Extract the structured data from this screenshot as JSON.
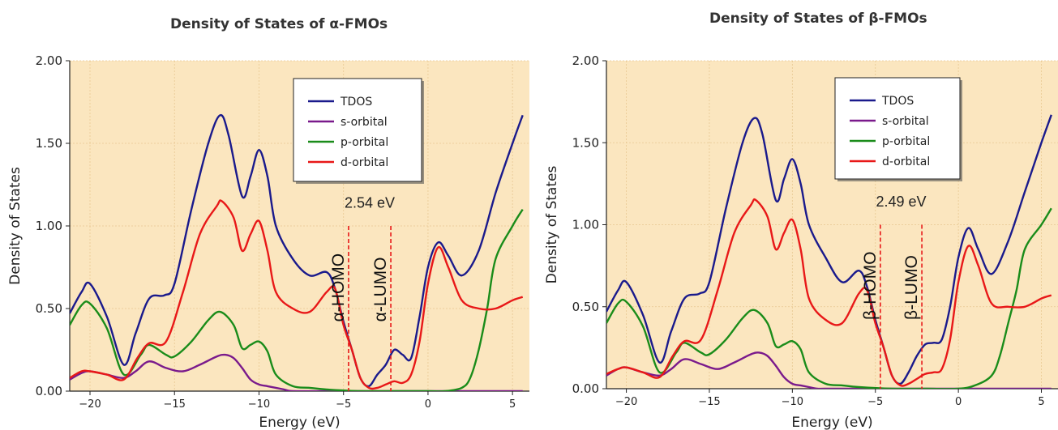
{
  "chart_data": [
    {
      "type": "line",
      "title": "Density of States of α-FMOs",
      "xlabel": "Energy (eV)",
      "ylabel": "Density of States",
      "xlim": [
        -21.2,
        6
      ],
      "ylim": [
        0,
        2.0
      ],
      "xticks": [
        -20,
        -15,
        -10,
        -5,
        0,
        5
      ],
      "xtick_labels": [
        "−20",
        "−15",
        "−10",
        "−5",
        "0",
        "5"
      ],
      "yticks": [
        0,
        0.5,
        1.0,
        1.5,
        2.0
      ],
      "ytick_labels": [
        "0.00",
        "0.50",
        "1.00",
        "1.50",
        "2.00"
      ],
      "grid": true,
      "legend": "top-right",
      "series": [
        {
          "name": "TDOS",
          "color": "#1a1a8c",
          "x": [
            -21.2,
            -20.5,
            -20,
            -19,
            -18,
            -17.3,
            -16.5,
            -15.6,
            -15,
            -14,
            -13,
            -12.3,
            -11.8,
            -11,
            -10.5,
            -10,
            -9.5,
            -9,
            -8,
            -7,
            -6,
            -5.5,
            -5,
            -4.5,
            -4,
            -3.5,
            -3,
            -2.5,
            -2,
            -1.5,
            -1,
            -0.5,
            0,
            0.6,
            1.2,
            2,
            3,
            4,
            5,
            5.6
          ],
          "y": [
            0.47,
            0.6,
            0.65,
            0.45,
            0.16,
            0.35,
            0.56,
            0.58,
            0.65,
            1.1,
            1.5,
            1.67,
            1.55,
            1.18,
            1.3,
            1.46,
            1.3,
            1.0,
            0.8,
            0.7,
            0.72,
            0.62,
            0.42,
            0.25,
            0.08,
            0.03,
            0.1,
            0.16,
            0.25,
            0.22,
            0.2,
            0.45,
            0.75,
            0.9,
            0.82,
            0.7,
            0.85,
            1.2,
            1.5,
            1.67
          ]
        },
        {
          "name": "s-orbital",
          "color": "#7a1a8c",
          "x": [
            -21.2,
            -20.5,
            -20,
            -19,
            -18,
            -17.3,
            -16.5,
            -15.5,
            -14.5,
            -13.5,
            -12.5,
            -12,
            -11.5,
            -11,
            -10.5,
            -10,
            -9.5,
            -9,
            -8.5,
            -8,
            -6,
            -4,
            -2,
            0,
            2,
            4,
            5.6
          ],
          "y": [
            0.07,
            0.11,
            0.12,
            0.1,
            0.08,
            0.12,
            0.18,
            0.14,
            0.12,
            0.16,
            0.21,
            0.22,
            0.2,
            0.14,
            0.07,
            0.04,
            0.03,
            0.02,
            0.01,
            0.0,
            0.0,
            0.0,
            0.0,
            0.0,
            0.0,
            0.0,
            0.0
          ]
        },
        {
          "name": "p-orbital",
          "color": "#1a8c1a",
          "x": [
            -21.2,
            -20.5,
            -20,
            -19,
            -18,
            -17,
            -16.5,
            -15.5,
            -15,
            -14,
            -13,
            -12.3,
            -11.5,
            -11,
            -10.5,
            -10,
            -9.5,
            -9,
            -8,
            -7,
            -6,
            -4,
            -2,
            0,
            1,
            2,
            2.5,
            3,
            3.5,
            4,
            5,
            5.6
          ],
          "y": [
            0.4,
            0.52,
            0.53,
            0.38,
            0.1,
            0.22,
            0.28,
            0.22,
            0.21,
            0.3,
            0.43,
            0.48,
            0.4,
            0.26,
            0.28,
            0.3,
            0.24,
            0.1,
            0.03,
            0.02,
            0.01,
            0.0,
            0.0,
            0.0,
            0.0,
            0.02,
            0.08,
            0.25,
            0.5,
            0.8,
            1.0,
            1.1
          ]
        },
        {
          "name": "d-orbital",
          "color": "#e81818",
          "x": [
            -21.2,
            -20.5,
            -20,
            -19,
            -18,
            -17.2,
            -16.5,
            -15.5,
            -14.5,
            -13.5,
            -12.5,
            -12.2,
            -11.5,
            -11,
            -10.5,
            -10,
            -9.5,
            -9,
            -8,
            -7,
            -6,
            -5.5,
            -5,
            -4.5,
            -4,
            -3.5,
            -3,
            -2.5,
            -2,
            -1.5,
            -1,
            -0.5,
            0,
            0.6,
            1.2,
            2,
            3,
            4,
            5,
            5.6
          ],
          "y": [
            0.08,
            0.12,
            0.12,
            0.1,
            0.07,
            0.2,
            0.29,
            0.3,
            0.6,
            0.95,
            1.12,
            1.15,
            1.05,
            0.85,
            0.95,
            1.03,
            0.85,
            0.6,
            0.5,
            0.48,
            0.6,
            0.62,
            0.4,
            0.25,
            0.08,
            0.02,
            0.02,
            0.04,
            0.06,
            0.05,
            0.1,
            0.3,
            0.65,
            0.87,
            0.75,
            0.55,
            0.5,
            0.5,
            0.55,
            0.57
          ]
        }
      ],
      "vlines": [
        {
          "x": -4.7,
          "color": "#e81818",
          "label": "α-HOMO"
        },
        {
          "x": -2.2,
          "color": "#e81818",
          "label": "α-LUMO"
        }
      ],
      "gap_label": "2.54 eV"
    },
    {
      "type": "line",
      "title": "Density of States of β-FMOs",
      "xlabel": "Energy (eV)",
      "ylabel": "Density of States",
      "xlim": [
        -21.2,
        6
      ],
      "ylim": [
        0,
        2.0
      ],
      "xticks": [
        -20,
        -15,
        -10,
        -5,
        0,
        5
      ],
      "xtick_labels": [
        "−20",
        "−15",
        "−10",
        "−5",
        "0",
        "5"
      ],
      "yticks": [
        0,
        0.5,
        1.0,
        1.5,
        2.0
      ],
      "ytick_labels": [
        "0.00",
        "0.50",
        "1.00",
        "1.50",
        "2.00"
      ],
      "grid": true,
      "legend": "top-right",
      "series": [
        {
          "name": "TDOS",
          "color": "#1a1a8c",
          "x": [
            -21.2,
            -20.5,
            -20,
            -19,
            -18,
            -17.3,
            -16.5,
            -15.6,
            -15,
            -14,
            -13,
            -12.3,
            -11.8,
            -11,
            -10.5,
            -10,
            -9.5,
            -9,
            -8,
            -7,
            -6,
            -5.5,
            -5,
            -4.5,
            -4,
            -3.5,
            -3,
            -2.5,
            -2,
            -1.5,
            -1,
            -0.5,
            0,
            0.6,
            1.2,
            2,
            3,
            4,
            5,
            5.6
          ],
          "y": [
            0.47,
            0.6,
            0.65,
            0.45,
            0.16,
            0.35,
            0.55,
            0.58,
            0.65,
            1.1,
            1.5,
            1.65,
            1.55,
            1.15,
            1.28,
            1.4,
            1.25,
            1.0,
            0.8,
            0.65,
            0.72,
            0.62,
            0.42,
            0.25,
            0.08,
            0.03,
            0.1,
            0.2,
            0.27,
            0.28,
            0.3,
            0.5,
            0.8,
            0.98,
            0.85,
            0.7,
            0.9,
            1.2,
            1.5,
            1.67
          ]
        },
        {
          "name": "s-orbital",
          "color": "#7a1a8c",
          "x": [
            -21.2,
            -20.5,
            -20,
            -19,
            -18,
            -17.3,
            -16.5,
            -15.5,
            -14.5,
            -13.5,
            -12.5,
            -12,
            -11.5,
            -11,
            -10.5,
            -10,
            -9.5,
            -9,
            -8.5,
            -8,
            -6,
            -4,
            -2,
            0,
            2,
            4,
            5.6
          ],
          "y": [
            0.08,
            0.12,
            0.13,
            0.1,
            0.08,
            0.12,
            0.18,
            0.15,
            0.12,
            0.16,
            0.21,
            0.22,
            0.2,
            0.14,
            0.07,
            0.03,
            0.02,
            0.01,
            0.0,
            0.0,
            0.0,
            0.0,
            0.0,
            0.0,
            0.0,
            0.0,
            0.0
          ]
        },
        {
          "name": "p-orbital",
          "color": "#1a8c1a",
          "x": [
            -21.2,
            -20.5,
            -20,
            -19,
            -18,
            -17,
            -16.5,
            -15.5,
            -15,
            -14,
            -13,
            -12.3,
            -11.5,
            -11,
            -10.5,
            -10,
            -9.5,
            -9,
            -8,
            -7,
            -6,
            -4,
            -2,
            0,
            1,
            2,
            2.5,
            3,
            3.5,
            4,
            5,
            5.6
          ],
          "y": [
            0.4,
            0.52,
            0.53,
            0.38,
            0.1,
            0.22,
            0.28,
            0.22,
            0.21,
            0.3,
            0.43,
            0.48,
            0.4,
            0.26,
            0.27,
            0.29,
            0.24,
            0.1,
            0.03,
            0.02,
            0.01,
            0.0,
            0.0,
            0.0,
            0.02,
            0.08,
            0.2,
            0.4,
            0.6,
            0.85,
            1.0,
            1.1
          ]
        },
        {
          "name": "d-orbital",
          "color": "#e81818",
          "x": [
            -21.2,
            -20.5,
            -20,
            -19,
            -18,
            -17.2,
            -16.5,
            -15.5,
            -14.5,
            -13.5,
            -12.5,
            -12.2,
            -11.5,
            -11,
            -10.5,
            -10,
            -9.5,
            -9,
            -8,
            -7,
            -6,
            -5.5,
            -5,
            -4.5,
            -4,
            -3.5,
            -3,
            -2.5,
            -2,
            -1.5,
            -1,
            -0.5,
            0,
            0.6,
            1.2,
            2,
            3,
            4,
            5,
            5.6
          ],
          "y": [
            0.09,
            0.12,
            0.13,
            0.1,
            0.07,
            0.2,
            0.29,
            0.3,
            0.6,
            0.95,
            1.12,
            1.15,
            1.05,
            0.85,
            0.95,
            1.03,
            0.85,
            0.55,
            0.42,
            0.4,
            0.58,
            0.6,
            0.4,
            0.25,
            0.08,
            0.02,
            0.03,
            0.06,
            0.09,
            0.1,
            0.12,
            0.3,
            0.65,
            0.87,
            0.75,
            0.52,
            0.5,
            0.5,
            0.55,
            0.57
          ]
        }
      ],
      "vlines": [
        {
          "x": -4.7,
          "color": "#e81818",
          "label": "β-HOMO"
        },
        {
          "x": -2.2,
          "color": "#e81818",
          "label": "β-LUMO"
        }
      ],
      "gap_label": "2.49 eV"
    }
  ],
  "colors": {
    "plot_background": "#fbe6bf",
    "grid": "#e8c892"
  }
}
